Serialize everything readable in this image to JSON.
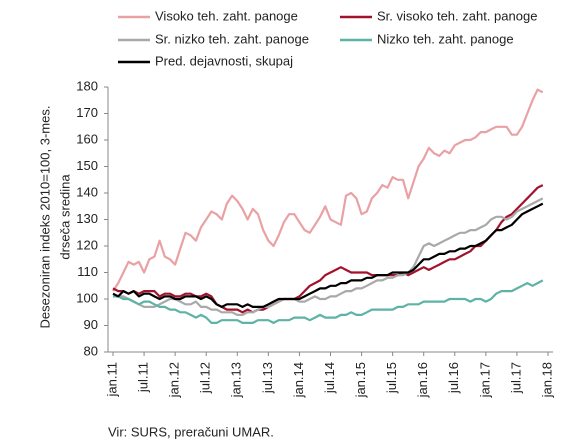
{
  "chart_data": {
    "type": "line",
    "ylabel": [
      "Desezoniran indeks 2010=100, 3-mes.",
      "drseča sredina"
    ],
    "source": "Vir: SURS, preračuni UMAR.",
    "categories": [
      "jan.11",
      null,
      null,
      null,
      null,
      null,
      "jul.11",
      null,
      null,
      null,
      null,
      null,
      "jan.12",
      null,
      null,
      null,
      null,
      null,
      "jul.12",
      null,
      null,
      null,
      null,
      null,
      "jan.13",
      null,
      null,
      null,
      null,
      null,
      "jul.13",
      null,
      null,
      null,
      null,
      null,
      "jan.14",
      null,
      null,
      null,
      null,
      null,
      "jul.14",
      null,
      null,
      null,
      null,
      null,
      "jan.15",
      null,
      null,
      null,
      null,
      null,
      "jul.15",
      null,
      null,
      null,
      null,
      null,
      "jan.16",
      null,
      null,
      null,
      null,
      null,
      "jul.16",
      null,
      null,
      null,
      null,
      null,
      "jan.17",
      null,
      null,
      null,
      null,
      null,
      "jul.17",
      null,
      null,
      null,
      null,
      null,
      "jan.18"
    ],
    "ylim": [
      80,
      180
    ],
    "yticks": [
      80,
      90,
      100,
      110,
      120,
      130,
      140,
      150,
      160,
      170,
      180
    ],
    "series": [
      {
        "name": "Visoko teh. zaht. panoge",
        "color": "#e9a1a4",
        "values": [
          103,
          106,
          110,
          114,
          113,
          114,
          110,
          115,
          116,
          122,
          116,
          115,
          113,
          119,
          125,
          124,
          122,
          127,
          130,
          133,
          132,
          130,
          136,
          139,
          137,
          134,
          130,
          134,
          132,
          126,
          122,
          120,
          124,
          129,
          132,
          132,
          129,
          126,
          125,
          128,
          131,
          135,
          130,
          129,
          128,
          139,
          140,
          138,
          132,
          133,
          138,
          140,
          143,
          142,
          146,
          145,
          145,
          138,
          144,
          150,
          153,
          157,
          155,
          154,
          156,
          155,
          158,
          159,
          160,
          160,
          161,
          163,
          163,
          164,
          165,
          165,
          165,
          162,
          162,
          165,
          170,
          175,
          179,
          178,
          null
        ]
      },
      {
        "name": "Sr. visoko teh. zaht. panoge",
        "color": "#a3122c",
        "values": [
          104,
          103,
          103,
          102,
          103,
          102,
          103,
          103,
          103,
          101,
          102,
          102,
          101,
          101,
          102,
          102,
          101,
          101,
          102,
          101,
          98,
          97,
          96,
          96,
          96,
          95,
          96,
          95,
          96,
          96,
          97,
          98,
          99,
          100,
          100,
          100,
          101,
          103,
          105,
          106,
          107,
          109,
          110,
          111,
          112,
          111,
          110,
          110,
          110,
          110,
          109,
          109,
          109,
          109,
          109,
          109,
          110,
          109,
          110,
          111,
          112,
          111,
          112,
          113,
          114,
          115,
          115,
          116,
          117,
          118,
          120,
          120,
          122,
          124,
          126,
          129,
          131,
          132,
          134,
          136,
          138,
          140,
          142,
          143,
          null
        ]
      },
      {
        "name": "Sr. nizko teh. zaht. panoge",
        "color": "#a9a9a9",
        "values": [
          101,
          101,
          101,
          100,
          99,
          98,
          97,
          97,
          97,
          98,
          99,
          100,
          100,
          99,
          98,
          98,
          99,
          97,
          97,
          96,
          96,
          95,
          95,
          95,
          94,
          94,
          95,
          95,
          96,
          97,
          97,
          98,
          99,
          100,
          100,
          100,
          99,
          99,
          100,
          101,
          100,
          100,
          101,
          101,
          102,
          103,
          103,
          104,
          104,
          105,
          106,
          107,
          107,
          108,
          108,
          109,
          109,
          110,
          112,
          116,
          120,
          121,
          120,
          121,
          122,
          123,
          124,
          125,
          125,
          126,
          126,
          127,
          128,
          130,
          131,
          131,
          130,
          131,
          133,
          134,
          135,
          136,
          137,
          138,
          null
        ]
      },
      {
        "name": "Nizko teh. zaht. panoge",
        "color": "#5db3a6",
        "values": [
          101,
          101,
          100,
          100,
          99,
          98,
          99,
          99,
          98,
          97,
          97,
          96,
          96,
          95,
          95,
          94,
          93,
          94,
          93,
          91,
          91,
          92,
          92,
          92,
          92,
          91,
          91,
          91,
          92,
          92,
          92,
          91,
          92,
          92,
          92,
          93,
          93,
          93,
          92,
          93,
          94,
          93,
          93,
          93,
          94,
          94,
          95,
          94,
          94,
          95,
          96,
          96,
          96,
          96,
          96,
          97,
          97,
          98,
          98,
          98,
          99,
          99,
          99,
          99,
          99,
          100,
          100,
          100,
          100,
          99,
          100,
          100,
          99,
          100,
          102,
          103,
          103,
          103,
          104,
          105,
          106,
          105,
          106,
          107,
          null
        ]
      },
      {
        "name": "Pred. dejavnosti, skupaj",
        "color": "#000000",
        "values": [
          102,
          101,
          103,
          102,
          103,
          101,
          102,
          102,
          101,
          100,
          101,
          101,
          100,
          100,
          101,
          101,
          101,
          100,
          101,
          100,
          98,
          97,
          98,
          98,
          98,
          97,
          98,
          97,
          97,
          97,
          98,
          99,
          100,
          100,
          100,
          100,
          100,
          101,
          102,
          103,
          104,
          104,
          105,
          105,
          106,
          106,
          107,
          107,
          107,
          108,
          108,
          109,
          109,
          109,
          110,
          110,
          110,
          110,
          111,
          113,
          115,
          115,
          116,
          117,
          117,
          118,
          118,
          119,
          119,
          120,
          120,
          121,
          122,
          124,
          126,
          126,
          127,
          128,
          130,
          132,
          133,
          134,
          135,
          136,
          null
        ]
      }
    ]
  }
}
